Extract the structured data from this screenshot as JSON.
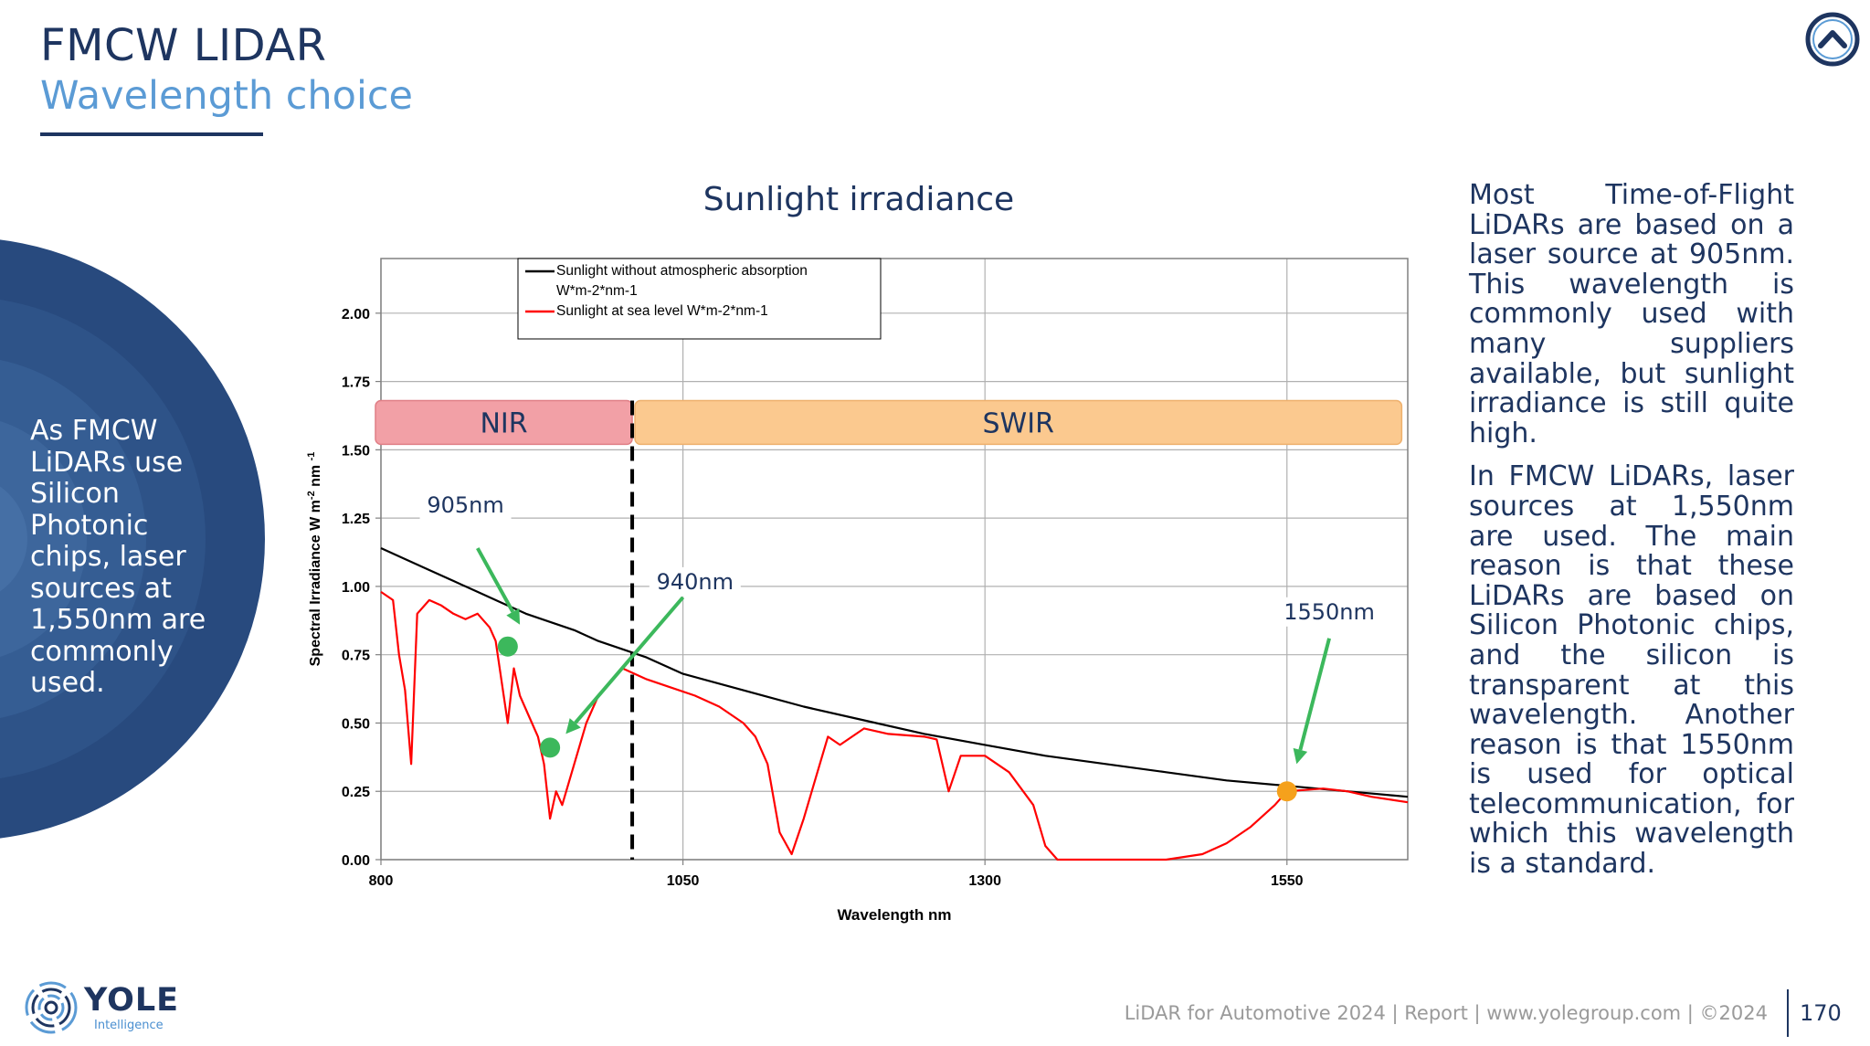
{
  "header": {
    "title": "FMCW LIDAR",
    "subtitle": "Wavelength choice"
  },
  "side_panel": {
    "text": "As FMCW LiDARs use Silicon Photonic chips, laser sources at 1,550nm are commonly used."
  },
  "colors": {
    "navy": "#1e3560",
    "accent_blue": "#5b9bd5",
    "nir_band": "#f2a0a6",
    "swir_band": "#fbc98f",
    "green_marker": "#3cb85c",
    "orange_marker": "#f5a11c",
    "sunlight_black": "#000000",
    "sunlight_red": "#ff0000"
  },
  "chart_data": {
    "type": "line",
    "title": "Sunlight irradiance",
    "xlabel": "Wavelength nm",
    "ylabel": "Spectral Irradiance W m-2 nm-1",
    "ylabel_parts": {
      "base": "Spectral Irradiance W m",
      "sup1": "-2",
      "mid": " nm ",
      "sup2": "-1"
    },
    "xlim": [
      800,
      1650
    ],
    "ylim": [
      0,
      2.2
    ],
    "x_ticks": [
      800,
      1050,
      1300,
      1550
    ],
    "x_tick_labels": [
      "800",
      "1050",
      "1300",
      "1550"
    ],
    "y_ticks": [
      0,
      0.25,
      0.5,
      0.75,
      1.0,
      1.25,
      1.5,
      1.75,
      2.0
    ],
    "y_tick_labels": [
      "0.00",
      "0.25",
      "0.50",
      "0.75",
      "1.00",
      "1.25",
      "1.50",
      "1.75",
      "2.00"
    ],
    "grid": true,
    "legend_position": "top-center",
    "legend": [
      {
        "name": "Sunlight without atmospheric absorption W*m-2*nm-1",
        "line1": "Sunlight without atmospheric absorption",
        "line2": "W*m-2*nm-1",
        "color": "#000000"
      },
      {
        "name": "Sunlight at sea level W*m-2*nm-1",
        "line1": "Sunlight at sea level W*m-2*nm-1",
        "line2": "",
        "color": "#ff0000"
      }
    ],
    "series": [
      {
        "name": "Sunlight without atmospheric absorption W*m-2*nm-1",
        "color": "#000000",
        "x": [
          800,
          820,
          840,
          860,
          880,
          900,
          920,
          940,
          960,
          980,
          1000,
          1020,
          1050,
          1100,
          1150,
          1200,
          1250,
          1300,
          1350,
          1400,
          1450,
          1500,
          1550,
          1600,
          1650
        ],
        "y": [
          1.14,
          1.1,
          1.06,
          1.02,
          0.98,
          0.94,
          0.9,
          0.87,
          0.84,
          0.8,
          0.77,
          0.74,
          0.68,
          0.62,
          0.56,
          0.51,
          0.46,
          0.42,
          0.38,
          0.35,
          0.32,
          0.29,
          0.27,
          0.25,
          0.23
        ]
      },
      {
        "name": "Sunlight at sea level W*m-2*nm-1",
        "color": "#ff0000",
        "x": [
          800,
          810,
          815,
          820,
          825,
          830,
          840,
          850,
          860,
          870,
          880,
          890,
          895,
          900,
          905,
          910,
          915,
          920,
          925,
          930,
          935,
          940,
          945,
          950,
          960,
          970,
          980,
          990,
          1000,
          1010,
          1020,
          1040,
          1060,
          1080,
          1100,
          1110,
          1120,
          1130,
          1140,
          1150,
          1160,
          1170,
          1180,
          1200,
          1220,
          1250,
          1260,
          1270,
          1280,
          1300,
          1320,
          1340,
          1350,
          1360,
          1370,
          1400,
          1420,
          1450,
          1480,
          1500,
          1520,
          1540,
          1550,
          1580,
          1600,
          1620,
          1650
        ],
        "y": [
          0.98,
          0.95,
          0.75,
          0.62,
          0.35,
          0.9,
          0.95,
          0.93,
          0.9,
          0.88,
          0.9,
          0.85,
          0.8,
          0.65,
          0.5,
          0.7,
          0.6,
          0.55,
          0.5,
          0.45,
          0.35,
          0.15,
          0.25,
          0.2,
          0.35,
          0.5,
          0.6,
          0.65,
          0.7,
          0.68,
          0.66,
          0.63,
          0.6,
          0.56,
          0.5,
          0.45,
          0.35,
          0.1,
          0.02,
          0.15,
          0.3,
          0.45,
          0.42,
          0.48,
          0.46,
          0.45,
          0.44,
          0.25,
          0.38,
          0.38,
          0.32,
          0.2,
          0.05,
          0.0,
          0.0,
          0.0,
          0.0,
          0.0,
          0.02,
          0.06,
          0.12,
          0.2,
          0.25,
          0.26,
          0.25,
          0.23,
          0.21
        ]
      }
    ],
    "bands": [
      {
        "label": "NIR",
        "x_start": 800,
        "x_end": 1008
      },
      {
        "label": "SWIR",
        "x_start": 1008,
        "x_end": 1645
      }
    ],
    "band_divider_x": 1008,
    "annotations": [
      {
        "label": "905nm",
        "x": 905,
        "y": 0.78,
        "marker_color": "#3cb85c"
      },
      {
        "label": "940nm",
        "x": 940,
        "y": 0.41,
        "marker_color": "#3cb85c"
      },
      {
        "label": "1550nm",
        "x": 1550,
        "y": 0.25,
        "marker_color": "#f5a11c"
      }
    ]
  },
  "right_text": {
    "p1": "Most Time-of-Flight LiDARs are based on a laser source at 905nm. This wavelength is commonly used with many suppliers available, but sunlight irradiance is still quite high.",
    "p2": "In FMCW LiDARs, laser sources at 1,550nm are used. The main reason is that these LiDARs are based on Silicon Photonic chips, and the silicon is transparent at this wavelength. Another reason is that 1550nm is used for optical telecommunication, for which this wavelength is a standard."
  },
  "footer": {
    "brand": "YOLE",
    "brand_sub": "Intelligence",
    "info": "LiDAR for Automotive 2024 | Report | www.yolegroup.com | ©2024",
    "page": "170"
  }
}
